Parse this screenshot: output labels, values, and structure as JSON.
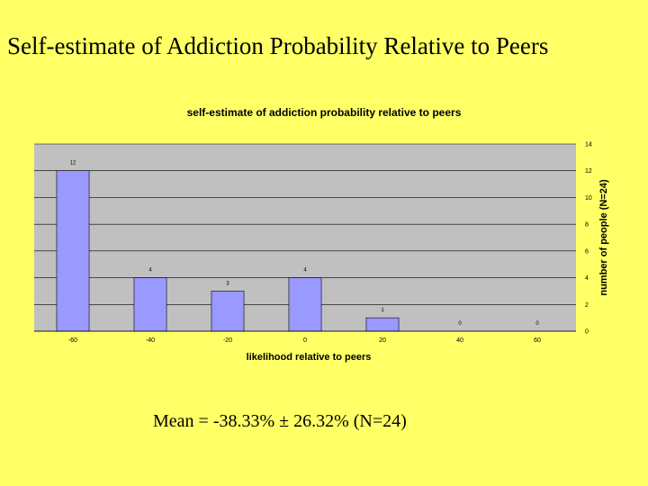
{
  "slide": {
    "title": "Self-estimate of Addiction Probability Relative to Peers",
    "summary": "Mean = -38.33% ± 26.32% (N=24)"
  },
  "chart_data": {
    "type": "bar",
    "title": "self-estimate of addiction probability relative to peers",
    "xlabel": "likelihood relative to peers",
    "ylabel": "number of people (N=24)",
    "categories": [
      "-60",
      "-40",
      "-20",
      "0",
      "20",
      "40",
      "60"
    ],
    "values": [
      12,
      4,
      3,
      4,
      1,
      0,
      0
    ],
    "data_labels": [
      "12",
      "4",
      "3",
      "4",
      "1",
      "0",
      "0"
    ],
    "ylim": [
      0,
      14
    ],
    "yticks": [
      0,
      2,
      4,
      6,
      8,
      10,
      12,
      14
    ],
    "y_axis_side": "right",
    "grid": true,
    "legend": "none",
    "colors": {
      "plot_bg": "#c0c0c0",
      "bar_fill": "#9999ff",
      "bar_stroke": "#000000",
      "grid": "#000000",
      "page_bg": "#ffff66"
    }
  }
}
